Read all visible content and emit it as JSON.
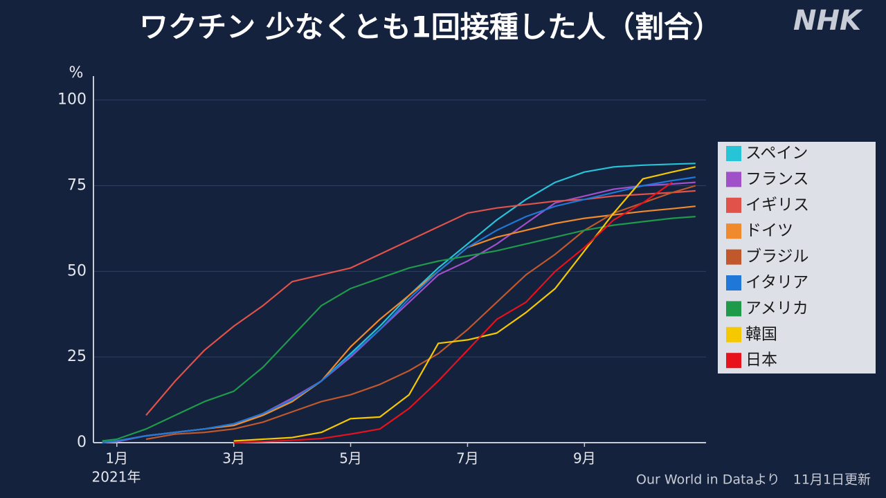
{
  "chart_data": {
    "type": "line",
    "title": "ワクチン 少なくとも1回接種した人（割合）",
    "logo": "NHK",
    "ylabel": "%",
    "xlabel": "2021年",
    "source": "Our World in Dataより　11月1日更新",
    "x": [
      0.75,
      1,
      1.5,
      2,
      2.5,
      3,
      3.5,
      4,
      4.5,
      5,
      5.5,
      6,
      6.5,
      7,
      7.5,
      8,
      8.5,
      9,
      9.5,
      10,
      10.5,
      10.9
    ],
    "xlim": [
      0.6,
      11.08
    ],
    "xticks": [
      {
        "value": 1,
        "label": "1月"
      },
      {
        "value": 3,
        "label": "3月"
      },
      {
        "value": 5,
        "label": "5月"
      },
      {
        "value": 7,
        "label": "7月"
      },
      {
        "value": 9,
        "label": "9月"
      }
    ],
    "ylim": [
      0,
      107
    ],
    "yticks": [
      0,
      25,
      50,
      75,
      100
    ],
    "grid": true,
    "legend": "right",
    "series": [
      {
        "name": "スペイン",
        "color": "#27c4d8",
        "values": [
          0,
          0.5,
          2,
          3,
          4,
          5.5,
          8,
          12,
          18,
          26,
          34,
          43,
          51,
          58,
          65,
          71,
          76,
          79,
          80.5,
          81,
          81.3,
          81.5
        ]
      },
      {
        "name": "フランス",
        "color": "#a050c8",
        "values": [
          0,
          0.3,
          2,
          3,
          4,
          5.5,
          8.5,
          13,
          18,
          25,
          33,
          41,
          49,
          53,
          58,
          64,
          70,
          72,
          74,
          75,
          75.5,
          76
        ]
      },
      {
        "name": "イギリス",
        "color": "#e0524a",
        "values": [
          null,
          null,
          8,
          18,
          27,
          34,
          40,
          47,
          49,
          51,
          55,
          59,
          63,
          67,
          68.5,
          69.5,
          70.5,
          71,
          72,
          72.5,
          73,
          73.5
        ]
      },
      {
        "name": "ドイツ",
        "color": "#f08a2c",
        "values": [
          0,
          0.5,
          2,
          3,
          4,
          5,
          8,
          12,
          18,
          28,
          36,
          43,
          50,
          57,
          60,
          62,
          64,
          65.5,
          66.5,
          67.5,
          68.3,
          69
        ]
      },
      {
        "name": "ブラジル",
        "color": "#c0582c",
        "values": [
          null,
          null,
          1,
          2.5,
          3,
          4,
          6,
          9,
          12,
          14,
          17,
          21,
          26,
          33,
          41,
          49,
          55,
          62,
          67,
          70,
          73,
          75
        ]
      },
      {
        "name": "イタリア",
        "color": "#1f78d8",
        "values": [
          0,
          0.5,
          2,
          3,
          4,
          5.5,
          8.5,
          12.5,
          18,
          25.5,
          33,
          42,
          50,
          57,
          62,
          66,
          69,
          71,
          73,
          75,
          76.5,
          77.5
        ]
      },
      {
        "name": "アメリカ",
        "color": "#1f9a4a",
        "values": [
          0.5,
          1,
          4,
          8,
          12,
          15,
          22,
          31,
          40,
          45,
          48,
          51,
          53,
          54.5,
          56,
          58,
          60,
          62,
          63.5,
          64.5,
          65.5,
          66
        ]
      },
      {
        "name": "韓国",
        "color": "#f5c800",
        "values": [
          null,
          null,
          null,
          null,
          null,
          0.5,
          1,
          1.5,
          3,
          7,
          7.5,
          14,
          29,
          30,
          32,
          38,
          45,
          56,
          67,
          77,
          79,
          80.5
        ]
      },
      {
        "name": "日本",
        "color": "#e8121c",
        "values": [
          null,
          null,
          null,
          null,
          null,
          0,
          0.3,
          0.7,
          1.2,
          2.5,
          4,
          10,
          18,
          27,
          36,
          41,
          50,
          57,
          65,
          70,
          76,
          null
        ]
      }
    ]
  }
}
